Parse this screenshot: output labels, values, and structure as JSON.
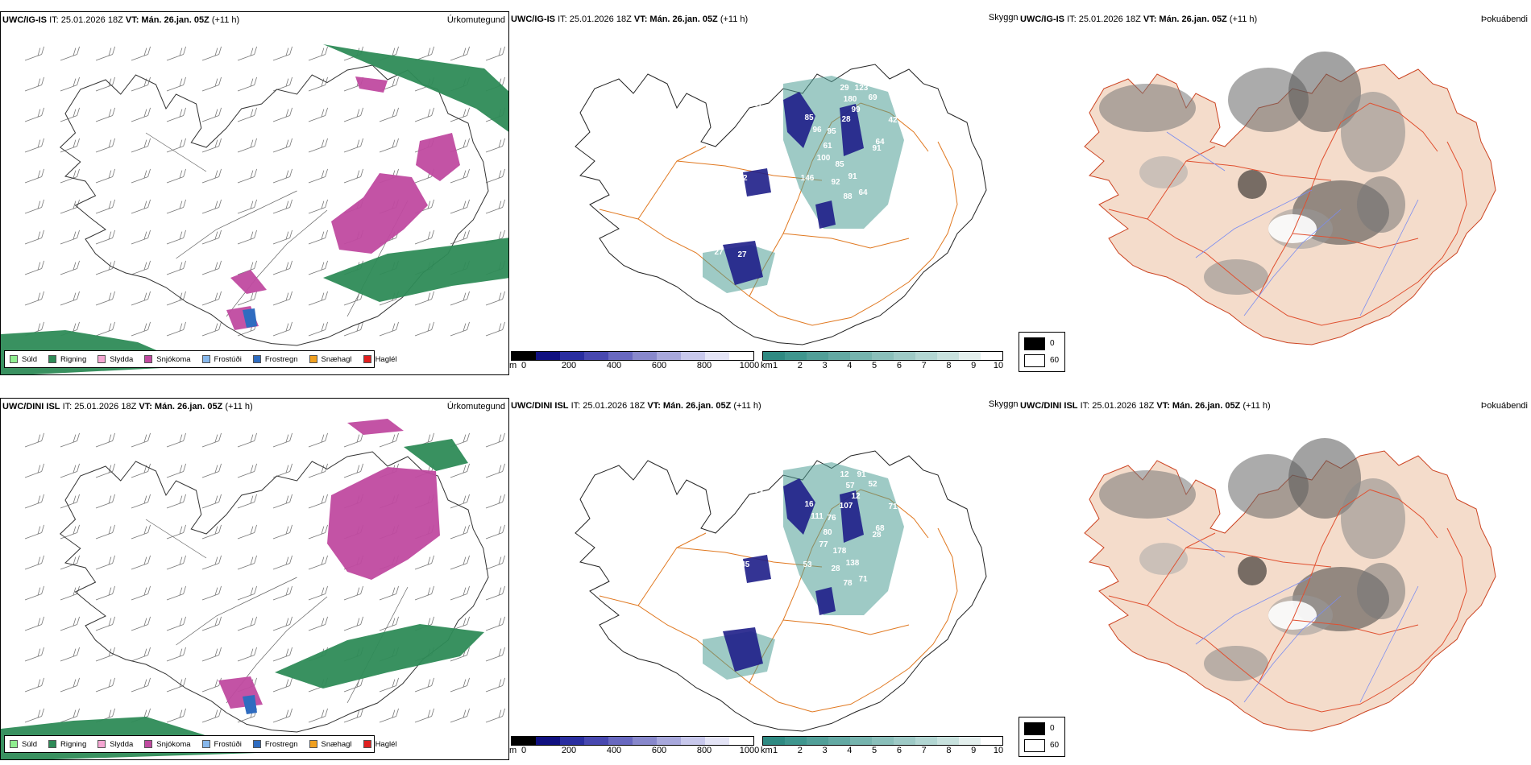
{
  "rows": [
    {
      "model": "UWC/IG-IS",
      "it_label": "IT: 25.01.2026 18Z",
      "vt_label": "VT: Mán. 26.jan. 05Z",
      "lead": "(+11 h)",
      "panel_titles": [
        "Úrkomutegund",
        "Skyggni",
        "Þokuábendi"
      ],
      "vis_labels": [
        "284",
        "29",
        "123",
        "87",
        "89",
        "85",
        "69",
        "83",
        "180",
        "99",
        "96",
        "28",
        "95",
        "42",
        "61",
        "64",
        "91",
        "100",
        "62",
        "85",
        "91",
        "146",
        "92",
        "88",
        "64",
        "59",
        "41",
        "44",
        "27",
        "27"
      ]
    },
    {
      "model": "UWC/DINI ISL",
      "it_label": "IT: 25.01.2026 18Z",
      "vt_label": "VT: Mán. 26.jan. 05Z",
      "lead": "(+11 h)",
      "panel_titles": [
        "Úrkomutegund",
        "Skyggni",
        "Þokuábendi"
      ],
      "vis_labels": [
        "262",
        "12",
        "91",
        "54",
        "102",
        "16",
        "52",
        "92",
        "57",
        "12",
        "111",
        "107",
        "76",
        "71",
        "80",
        "68",
        "28",
        "77",
        "145",
        "178",
        "138",
        "53",
        "28",
        "78",
        "71",
        "38"
      ]
    }
  ],
  "precip_legend": [
    {
      "label": "Súld",
      "color": "#90ee90"
    },
    {
      "label": "Rigning",
      "color": "#2e8b57"
    },
    {
      "label": "Slydda",
      "color": "#f4a6d2"
    },
    {
      "label": "Snjókoma",
      "color": "#c04aa0"
    },
    {
      "label": "Frostúði",
      "color": "#87b8ec"
    },
    {
      "label": "Frostregn",
      "color": "#2f6cc0"
    },
    {
      "label": "Snæhagl",
      "color": "#f0a020"
    },
    {
      "label": "Haglél",
      "color": "#e02020"
    }
  ],
  "height_bar": {
    "unit": "m",
    "ticks": [
      "0",
      "200",
      "400",
      "600",
      "800",
      "1000"
    ],
    "colors": [
      "#000000",
      "#101080",
      "#2a2ea0",
      "#4848b0",
      "#6868c0",
      "#8888cc",
      "#a8a8dc",
      "#c8c8ec",
      "#e4e4f6",
      "#ffffff"
    ]
  },
  "cloudbase_bar": {
    "unit": "km",
    "ticks": [
      "1",
      "2",
      "3",
      "4",
      "5",
      "6",
      "7",
      "8",
      "9",
      "10"
    ],
    "colors": [
      "#2f8a82",
      "#3f968e",
      "#519f98",
      "#63a9a3",
      "#76b4ae",
      "#8abfba",
      "#9ecac6",
      "#b2d6d2",
      "#c8e2de",
      "#e4f0ee",
      "#ffffff"
    ]
  },
  "fog_legend": {
    "low": "0",
    "high": "60"
  }
}
